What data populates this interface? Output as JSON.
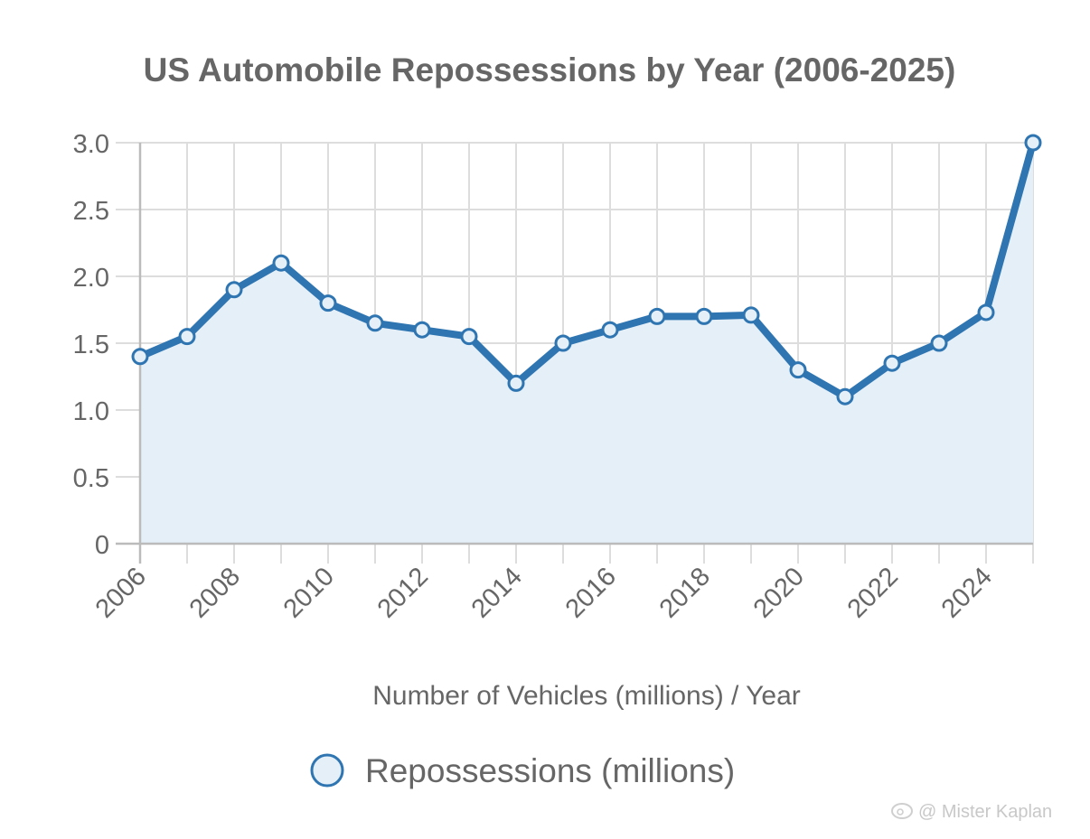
{
  "watermark": {
    "text": "@ Mister Kaplan",
    "icon": "weibo-icon"
  },
  "colors": {
    "line": "#2e75b1",
    "fill": "#e5eff8",
    "grid": "#dddddd",
    "axis": "#bbbbbb",
    "text": "#666666"
  },
  "chart_data": {
    "type": "area",
    "title": "US Automobile Repossessions by Year (2006-2025)",
    "xlabel": "Number of Vehicles (millions) / Year",
    "ylabel": "",
    "ylim": [
      0,
      3
    ],
    "yticks": [
      "0",
      "0.5",
      "1.0",
      "1.5",
      "2.0",
      "2.5",
      "3.0"
    ],
    "xtick_labels": [
      "2006",
      "2008",
      "2010",
      "2012",
      "2014",
      "2016",
      "2018",
      "2020",
      "2022",
      "2024"
    ],
    "grid": true,
    "legend_position": "bottom",
    "x": [
      2006,
      2007,
      2008,
      2009,
      2010,
      2011,
      2012,
      2013,
      2014,
      2015,
      2016,
      2017,
      2018,
      2019,
      2020,
      2021,
      2022,
      2023,
      2024,
      2025
    ],
    "series": [
      {
        "name": "Repossessions (millions)",
        "values": [
          1.4,
          1.55,
          1.9,
          2.1,
          1.8,
          1.65,
          1.6,
          1.55,
          1.2,
          1.5,
          1.6,
          1.7,
          1.7,
          1.71,
          1.3,
          1.1,
          1.35,
          1.5,
          1.73,
          3.0
        ]
      }
    ]
  }
}
